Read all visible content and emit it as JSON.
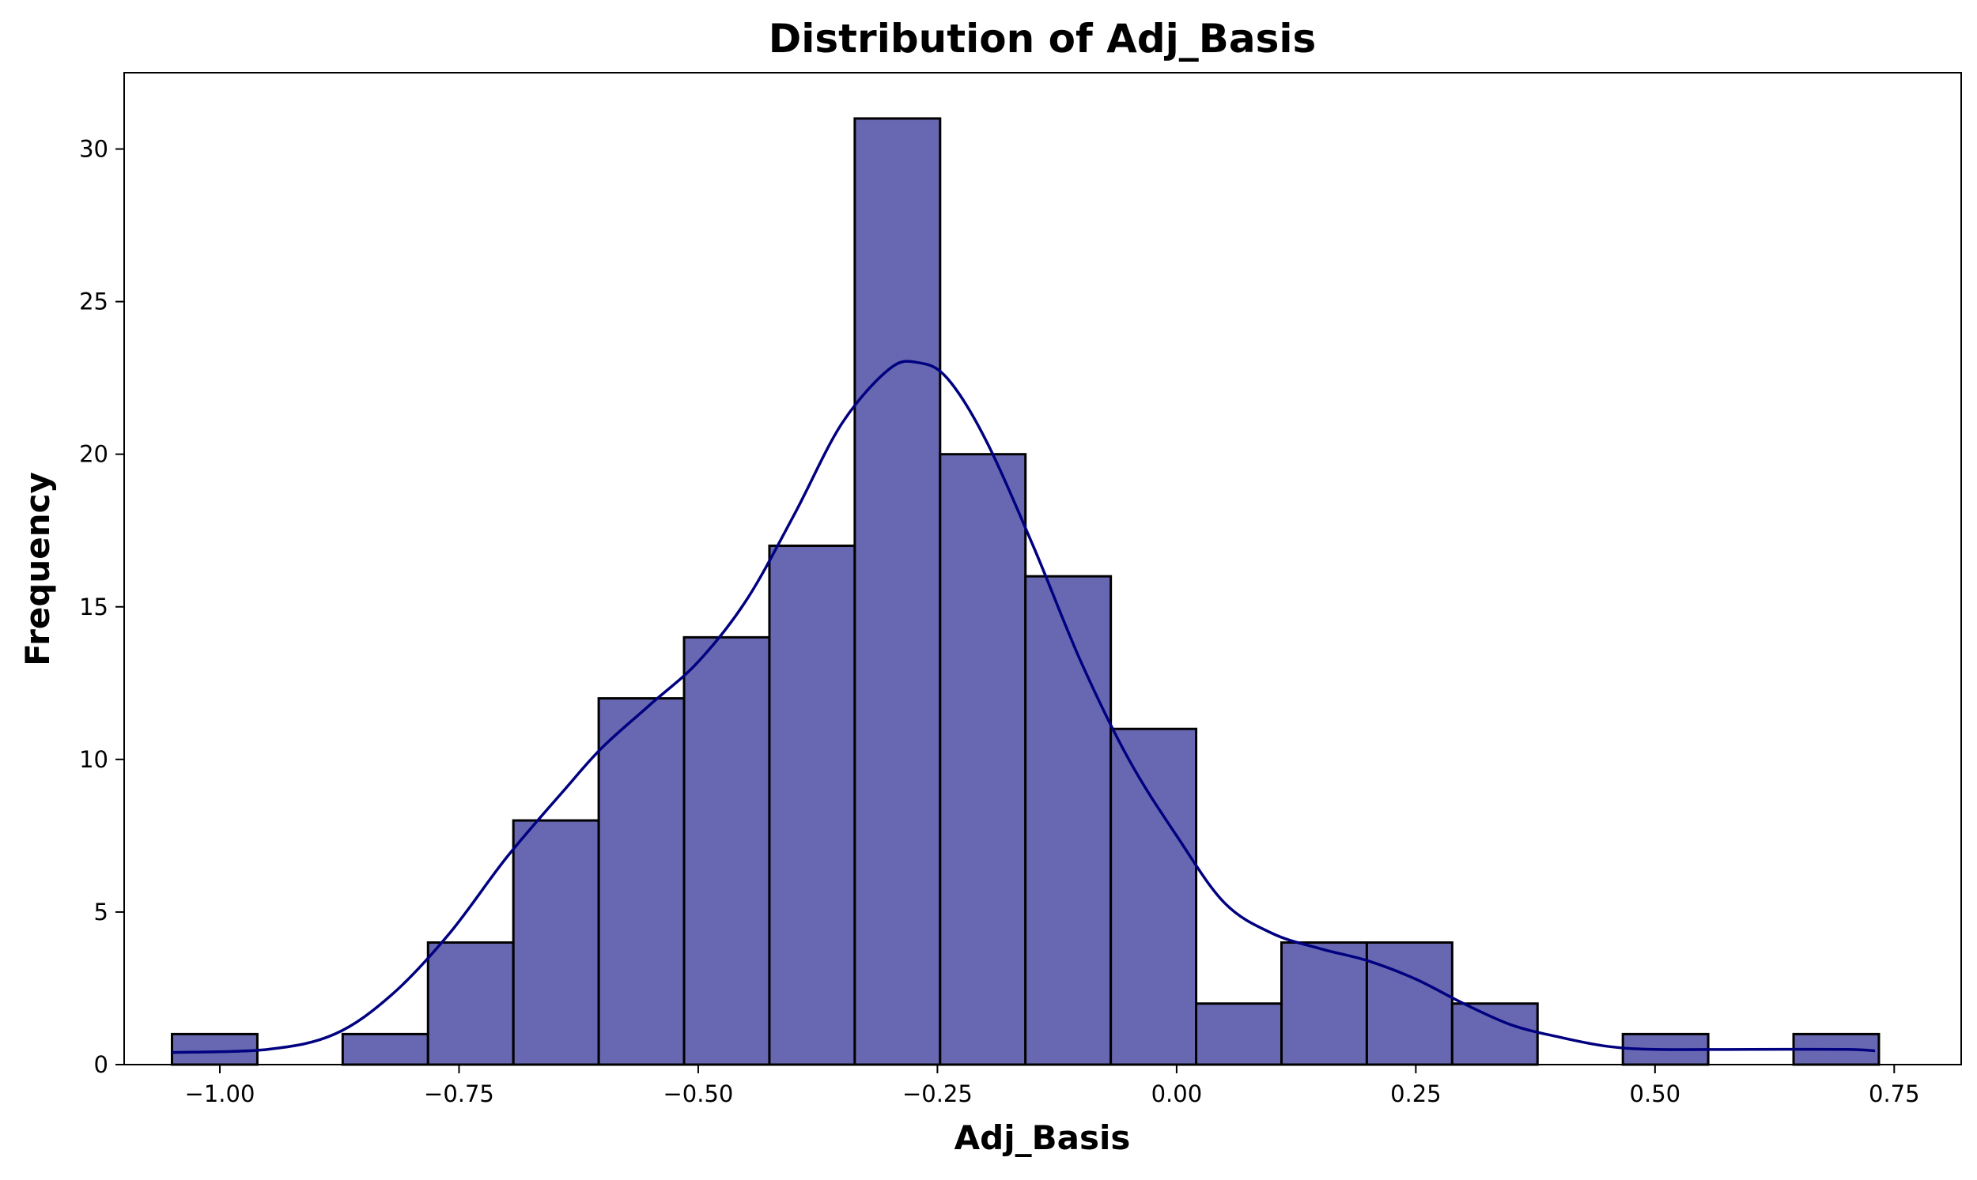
{
  "chart_data": {
    "type": "bar",
    "subtype": "histogram-with-kde",
    "title": "Distribution of Adj_Basis",
    "xlabel": "Adj_Basis",
    "ylabel": "Frequency",
    "xlim": [
      -1.1,
      0.82
    ],
    "ylim": [
      0,
      32.5
    ],
    "xticks": [
      -1.0,
      -0.75,
      -0.5,
      -0.25,
      0.0,
      0.25,
      0.5,
      0.75
    ],
    "xtick_labels": [
      "−1.00",
      "−0.75",
      "−0.50",
      "−0.25",
      "0.00",
      "0.25",
      "0.50",
      "0.75"
    ],
    "yticks": [
      0,
      5,
      10,
      15,
      20,
      25,
      30
    ],
    "ytick_labels": [
      "0",
      "5",
      "10",
      "15",
      "20",
      "25",
      "30"
    ],
    "bin_start": -1.05,
    "bin_width": 0.0892,
    "values": [
      1,
      0,
      1,
      4,
      8,
      12,
      14,
      17,
      31,
      20,
      16,
      11,
      2,
      4,
      4,
      2,
      0,
      1,
      0,
      1
    ],
    "bar_color": "#6868b2",
    "edge_color": "#000000",
    "kde_color": "#000080",
    "kde": {
      "x": [
        -1.05,
        -0.95,
        -0.88,
        -0.82,
        -0.76,
        -0.7,
        -0.64,
        -0.6,
        -0.55,
        -0.5,
        -0.45,
        -0.4,
        -0.35,
        -0.3,
        -0.27,
        -0.24,
        -0.2,
        -0.15,
        -0.1,
        -0.05,
        0.0,
        0.05,
        0.1,
        0.15,
        0.2,
        0.25,
        0.3,
        0.35,
        0.4,
        0.45,
        0.5,
        0.6,
        0.7,
        0.73
      ],
      "y": [
        0.4,
        0.5,
        1.0,
        2.3,
        4.3,
        6.8,
        9.0,
        10.4,
        11.8,
        13.2,
        15.2,
        18.0,
        21.0,
        22.8,
        23.0,
        22.5,
        20.5,
        17.0,
        13.2,
        10.0,
        7.5,
        5.3,
        4.3,
        3.8,
        3.4,
        2.8,
        2.0,
        1.3,
        0.9,
        0.6,
        0.5,
        0.5,
        0.5,
        0.45
      ]
    },
    "grid": false,
    "legend": "none"
  }
}
